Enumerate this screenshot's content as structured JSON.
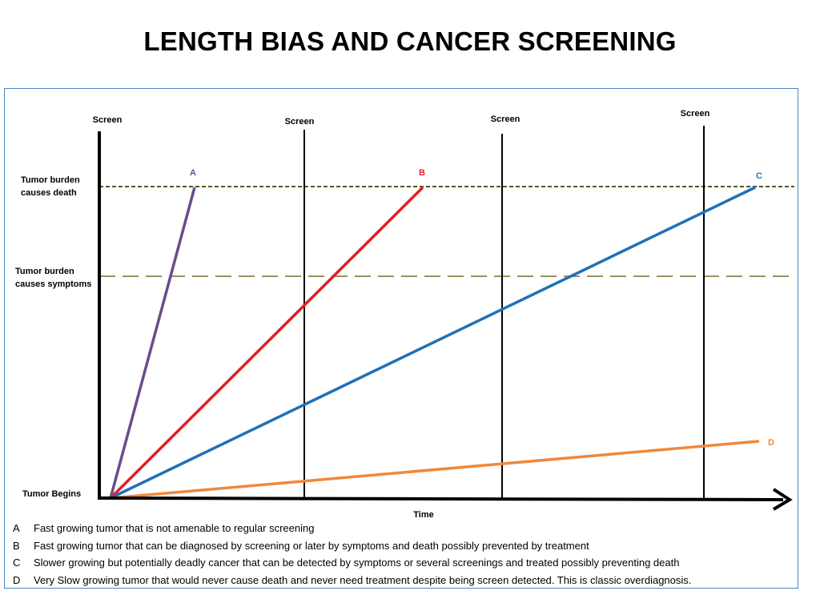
{
  "title": "LENGTH BIAS AND CANCER SCREENING",
  "screen_labels": [
    "Screen",
    "Screen",
    "Screen",
    "Screen"
  ],
  "y_labels": {
    "death_line1": "Tumor burden",
    "death_line2": "causes death",
    "symptoms_line1": "Tumor burden",
    "symptoms_line2": "causes symptoms",
    "begins": "Tumor Begins"
  },
  "x_label": "Time",
  "tumors": [
    {
      "letter": "A",
      "color": "#6b4c8a"
    },
    {
      "letter": "B",
      "color": "#e31e24"
    },
    {
      "letter": "C",
      "color": "#1f70b8"
    },
    {
      "letter": "D",
      "color": "#f0883a"
    }
  ],
  "line_colors": {
    "death_threshold": "#4a5a2a",
    "symptom_threshold": "#9a9060",
    "axis": "#000000"
  },
  "legend": [
    {
      "key": "A",
      "text": "Fast growing tumor that is not amenable to  regular screening"
    },
    {
      "key": "B",
      "text": "Fast growing tumor that can be diagnosed by screening  or later by symptoms and death possibly prevented by treatment"
    },
    {
      "key": "C",
      "text": "Slower growing but potentially deadly cancer that can be detected by symptoms or several screenings and treated possibly preventing  death"
    },
    {
      "key": "D",
      "text": "Very Slow growing tumor that would never cause death and never need treatment despite  being screen detected.  This is classic overdiagnosis."
    }
  ]
}
